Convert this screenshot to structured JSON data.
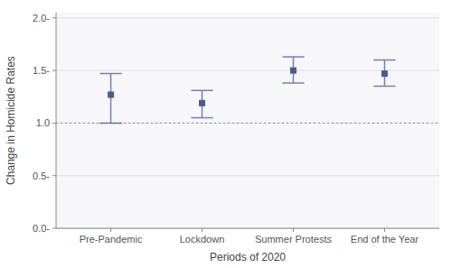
{
  "chart_data": {
    "type": "errorbar",
    "categories": [
      "Pre-Pandemic",
      "Lockdown",
      "Summer Protests",
      "End of the Year"
    ],
    "values": [
      1.27,
      1.19,
      1.5,
      1.47
    ],
    "ci_low": [
      1.0,
      1.05,
      1.38,
      1.35
    ],
    "ci_high": [
      1.47,
      1.31,
      1.63,
      1.6
    ],
    "reference_y": 1.0,
    "color": "#4a5a96",
    "ylim": [
      0.0,
      2.05
    ],
    "yticks": [
      {
        "value": 0.0,
        "label": "0.0-"
      },
      {
        "value": 0.5,
        "label": "0.5-"
      },
      {
        "value": 1.0,
        "label": "1.0"
      },
      {
        "value": 1.5,
        "label": "1.5-"
      },
      {
        "value": 2.0,
        "label": "2.0-"
      }
    ],
    "ylabel": "Change in Homicide Rates",
    "xlabel": "Periods of 2020",
    "grid": true
  }
}
